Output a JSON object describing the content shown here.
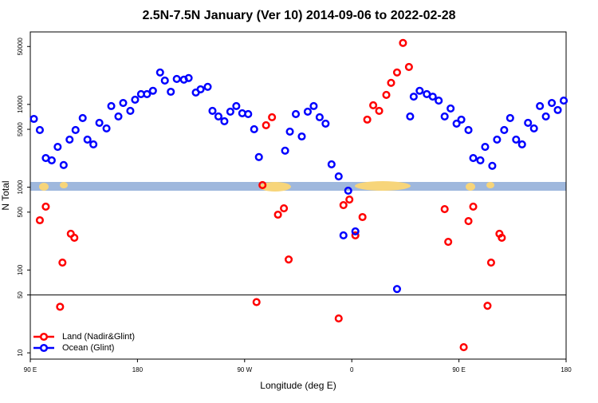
{
  "chart_data": {
    "type": "scatter",
    "title": "2.5N-7.5N January (Ver 10)   2014-09-06 to 2022-02-28",
    "x_label": "Longitude (deg E)",
    "y_label": "N Total",
    "y_log": true,
    "xlim": [
      90,
      540
    ],
    "ylim": [
      8.4,
      75000
    ],
    "xticks": [
      {
        "value": 90,
        "label": "90 E"
      },
      180,
      {
        "value": 270,
        "label": "90 W"
      },
      {
        "value": 360,
        "label": "0"
      },
      {
        "value": 450,
        "label": "90 E"
      },
      {
        "value": 540,
        "label": "180"
      }
    ],
    "yticks": [
      10,
      50,
      100,
      500,
      1000,
      5000,
      10000,
      50000
    ],
    "hline": 50,
    "legend_position": "bottom-left",
    "series": [
      {
        "name": "Land (Nadir&Glint)",
        "color": "#ff0000",
        "x": [
          98,
          103,
          117,
          124,
          127,
          115,
          280,
          285,
          288,
          293,
          298,
          303,
          307,
          349,
          353,
          358,
          363,
          369,
          373,
          378,
          383,
          389,
          393,
          398,
          403,
          408,
          438,
          441,
          458,
          462,
          454,
          474,
          477,
          484,
          486
        ],
        "values": [
          399,
          582,
          123,
          274,
          245,
          36,
          41,
          1060,
          5600,
          7000,
          466,
          556,
          134,
          26,
          608,
          710,
          262,
          436,
          6550,
          9750,
          8350,
          13000,
          18200,
          24300,
          55200,
          28300,
          544,
          219,
          390,
          582,
          11.7,
          37,
          123,
          274,
          245
        ]
      },
      {
        "name": "Ocean (Glint)",
        "color": "#0000ff",
        "x": [
          93,
          98,
          103,
          108,
          113,
          118,
          123,
          128,
          134,
          138,
          143,
          148,
          154,
          158,
          164,
          168,
          174,
          178,
          183,
          188,
          193,
          199,
          203,
          208,
          213,
          219,
          223,
          229,
          233,
          239,
          243,
          248,
          253,
          258,
          263,
          268,
          273,
          278,
          282,
          304,
          308,
          313,
          318,
          323,
          328,
          333,
          338,
          343,
          349,
          357,
          353,
          363,
          398,
          409,
          412,
          417,
          423,
          428,
          433,
          438,
          443,
          448,
          452,
          458,
          462,
          468,
          472,
          478,
          482,
          488,
          493,
          498,
          503,
          508,
          513,
          518,
          523,
          528,
          533,
          538
        ],
        "values": [
          6680,
          4900,
          2250,
          2110,
          3070,
          1850,
          3760,
          4900,
          6840,
          3760,
          3290,
          5980,
          5130,
          9550,
          7150,
          10400,
          8350,
          11400,
          13300,
          13300,
          14600,
          24300,
          19400,
          14200,
          20300,
          19900,
          20800,
          13900,
          15200,
          16300,
          8350,
          7150,
          6260,
          8170,
          9550,
          7810,
          7640,
          5010,
          2310,
          2760,
          4690,
          7640,
          4100,
          8170,
          9550,
          7000,
          5860,
          1890,
          1350,
          908,
          262,
          293,
          59,
          7150,
          12400,
          14600,
          13300,
          12400,
          11100,
          7150,
          8930,
          5860,
          6550,
          4900,
          2250,
          2110,
          3070,
          1810,
          3760,
          4900,
          6840,
          3760,
          3290,
          5980,
          5130,
          9550,
          7150,
          10400,
          8550,
          11100
        ]
      }
    ]
  }
}
